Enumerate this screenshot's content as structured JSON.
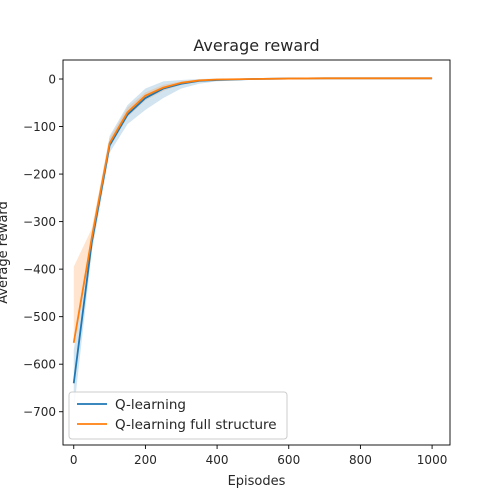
{
  "chart_data": {
    "type": "line",
    "title": "Average reward",
    "xlabel": "Episodes",
    "ylabel": "Average reward",
    "xlim": [
      -30,
      1050
    ],
    "ylim": [
      -770,
      40
    ],
    "xticks": [
      0,
      200,
      400,
      600,
      800,
      1000
    ],
    "yticks": [
      0,
      -100,
      -200,
      -300,
      -400,
      -500,
      -600,
      -700
    ],
    "xtick_labels": [
      "0",
      "200",
      "400",
      "600",
      "800",
      "1000"
    ],
    "ytick_labels": [
      "0",
      "−100",
      "−200",
      "−300",
      "−400",
      "−500",
      "−600",
      "−700"
    ],
    "legend_position": "lower-left",
    "x": [
      0,
      50,
      100,
      150,
      200,
      250,
      300,
      350,
      400,
      450,
      500,
      600,
      700,
      800,
      900,
      1000
    ],
    "series": [
      {
        "name": "Q-learning",
        "color": "#1f77b4",
        "values": [
          -640,
          -345,
          -140,
          -75,
          -40,
          -20,
          -10,
          -4,
          -2,
          -1,
          0,
          1,
          1.5,
          1.5,
          1.5,
          1.5
        ],
        "lower": [
          -700,
          -365,
          -155,
          -95,
          -65,
          -40,
          -20,
          -10,
          -5,
          -3,
          -1,
          0,
          0,
          0,
          0,
          0
        ],
        "upper": [
          -570,
          -325,
          -120,
          -55,
          -20,
          -5,
          -2,
          0,
          1,
          1,
          1,
          2,
          2,
          2,
          2,
          2
        ]
      },
      {
        "name": "Q-learning full structure",
        "color": "#ff7f0e",
        "values": [
          -555,
          -335,
          -135,
          -70,
          -35,
          -18,
          -8,
          -3,
          -1,
          -0.5,
          0,
          1,
          1.5,
          1.5,
          1.5,
          1.5
        ],
        "lower": [
          -560,
          -350,
          -140,
          -80,
          -45,
          -25,
          -12,
          -5,
          -2,
          -1,
          -0.5,
          0.5,
          1,
          1,
          1,
          1
        ],
        "upper": [
          -395,
          -315,
          -125,
          -60,
          -28,
          -12,
          -5,
          -1,
          0,
          0,
          0.5,
          1.5,
          2,
          2,
          2,
          2
        ]
      }
    ]
  }
}
